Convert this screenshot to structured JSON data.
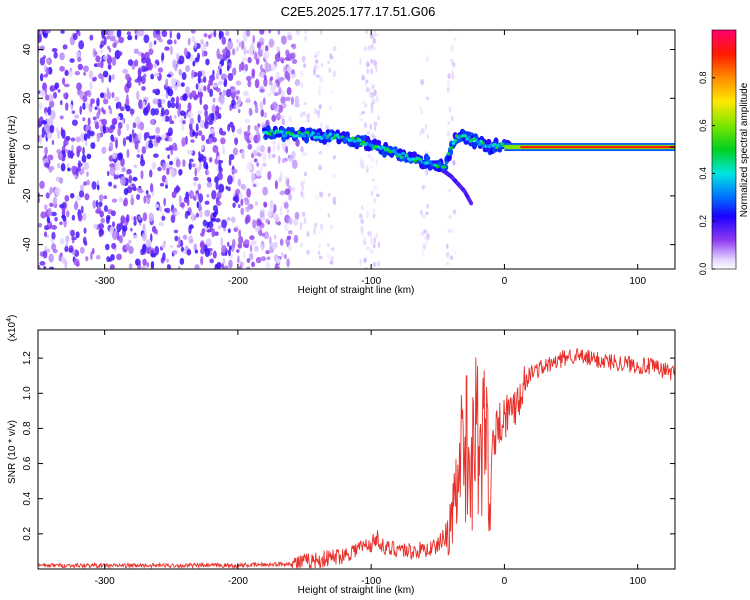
{
  "title": "C2E5.2025.177.17.51.G06",
  "chart_data": [
    {
      "type": "heatmap",
      "xlabel": "Height of straight line (km)",
      "ylabel": "Frequency (Hz)",
      "xlim": [
        -350,
        128
      ],
      "ylim": [
        -50,
        48
      ],
      "xticks": [
        "-300",
        "-200",
        "-100",
        "0",
        "100"
      ],
      "yticks": [
        "-40",
        "-20",
        "0",
        "20",
        "40"
      ],
      "colorbar": {
        "label": "Normalized spectral amplitude",
        "range": [
          0.0,
          1.0
        ],
        "ticks": [
          "0.0",
          "0.2",
          "0.4",
          "0.6",
          "0.8"
        ]
      },
      "grid": false,
      "features": [
        {
          "name": "broadband noise",
          "x_range": [
            -350,
            -155
          ],
          "freq_range": [
            -50,
            48
          ],
          "amplitude": 0.15
        },
        {
          "name": "scattered noise",
          "x_range": [
            -155,
            -25
          ],
          "freq_range": [
            -50,
            48
          ],
          "amplitude": 0.05
        },
        {
          "name": "signal trace",
          "x": [
            -180,
            -150,
            -120,
            -100,
            -80,
            -60,
            -45,
            -40,
            -35,
            -30,
            -20,
            -10,
            0,
            10,
            128
          ],
          "freq": [
            6,
            5,
            4,
            1,
            -3,
            -6,
            -8,
            0,
            5,
            4,
            2,
            0,
            1,
            0,
            0
          ],
          "amplitude": 0.4
        },
        {
          "name": "side branch",
          "x": [
            -45,
            -40,
            -35,
            -30,
            -25
          ],
          "freq": [
            -10,
            -12,
            -15,
            -18,
            -23
          ],
          "amplitude": 0.15
        },
        {
          "name": "strong carrier",
          "x_range": [
            0,
            128
          ],
          "freq": 0,
          "amplitude": 0.9
        }
      ]
    },
    {
      "type": "line",
      "xlabel": "Height of straight line (km)",
      "ylabel": "SNR (10 * v/v)",
      "scale_label": "(x10^4)",
      "xlim": [
        -350,
        128
      ],
      "ylim": [
        0,
        1.36
      ],
      "xticks": [
        "-300",
        "-200",
        "-100",
        "0",
        "100"
      ],
      "yticks": [
        "0.2",
        "0.4",
        "0.6",
        "0.8",
        "1.0",
        "1.2"
      ],
      "grid": false,
      "series": [
        {
          "color": "#e8302a",
          "x": [
            -350,
            -300,
            -250,
            -200,
            -160,
            -140,
            -120,
            -110,
            -100,
            -95,
            -90,
            -80,
            -70,
            -60,
            -50,
            -45,
            -40,
            -35,
            -32,
            -28,
            -25,
            -22,
            -20,
            -18,
            -15,
            -12,
            -10,
            -5,
            0,
            5,
            10,
            15,
            20,
            30,
            40,
            50,
            60,
            70,
            80,
            90,
            100,
            110,
            120,
            128
          ],
          "y": [
            0.02,
            0.02,
            0.02,
            0.02,
            0.03,
            0.05,
            0.08,
            0.12,
            0.14,
            0.18,
            0.11,
            0.12,
            0.1,
            0.11,
            0.13,
            0.2,
            0.35,
            0.6,
            0.9,
            1.0,
            0.75,
            1.05,
            1.25,
            0.7,
            1.1,
            0.85,
            0.7,
            0.82,
            0.88,
            0.9,
            0.98,
            1.05,
            1.12,
            1.15,
            1.18,
            1.22,
            1.2,
            1.19,
            1.18,
            1.17,
            1.16,
            1.15,
            1.13,
            1.12
          ]
        }
      ]
    }
  ]
}
